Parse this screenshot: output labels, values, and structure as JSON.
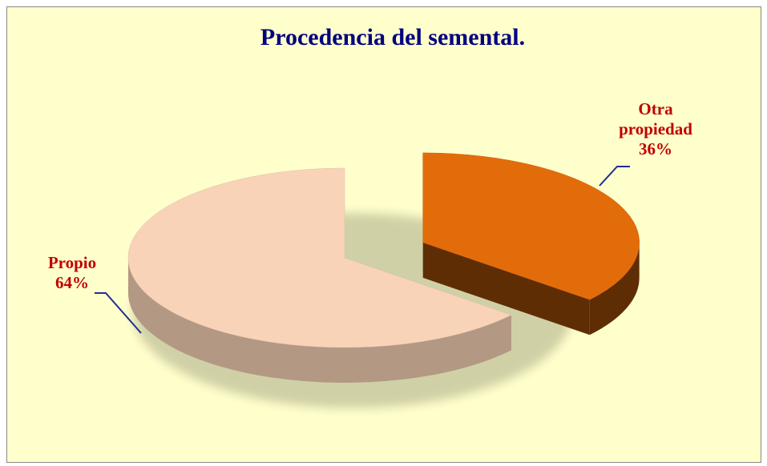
{
  "chart_data": {
    "type": "pie",
    "title": "Procedencia del semental.",
    "categories": [
      "Propio",
      "Otra propiedad"
    ],
    "values": [
      64,
      36
    ],
    "value_labels": [
      "64%",
      "36%"
    ],
    "colors": [
      "#f9d3b8",
      "#e36c0a"
    ]
  }
}
